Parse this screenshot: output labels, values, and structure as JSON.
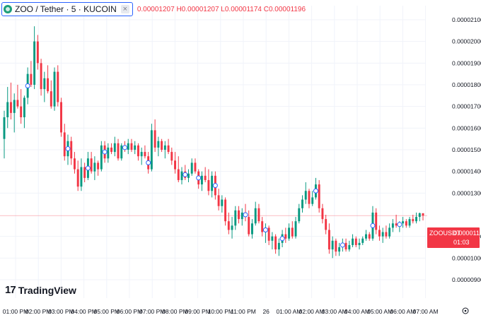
{
  "header": {
    "symbol_text": "ZOO / Tether · 5 · KUCOIN",
    "close_icon": "close-icon",
    "ohlc": {
      "open_key": "O",
      "open": "0.00001207",
      "high_key": "H",
      "high": "0.00001207",
      "low_key": "L",
      "low": "0.00001174",
      "close_key": "C",
      "close": "0.00001196"
    }
  },
  "branding": {
    "logo_text": "TradingView",
    "logo_mark": "17"
  },
  "price_label": {
    "symbol": "ZOOUSDT",
    "price": "0.00001196",
    "countdown": "01:03"
  },
  "axis_settings_icon": "settings-icon",
  "colors": {
    "up": "#089981",
    "down": "#f23645",
    "grid": "#f0f3fa",
    "axis_text": "#131722",
    "marker": "#2962ff"
  },
  "chart_data": {
    "type": "candlestick",
    "title": "ZOO / Tether · 5 · KUCOIN",
    "xlabel": "",
    "ylabel": "",
    "ylim": [
      9e-06,
      2.12e-05
    ],
    "x_ticks": [
      "01:00 PM",
      "02:00 PM",
      "03:00 PM",
      "04:00 PM",
      "05:00 PM",
      "06:00 PM",
      "07:00 PM",
      "08:00 PM",
      "09:00 PM",
      "10:00 PM",
      "11:00 PM",
      "26",
      "01:00 AM",
      "02:00 AM",
      "03:00 AM",
      "04:00 AM",
      "05:00 AM",
      "06:00 AM",
      "07:00 AM"
    ],
    "y_ticks": [
      "0.00002100",
      "0.00002000",
      "0.00001900",
      "0.00001800",
      "0.00001700",
      "0.00001600",
      "0.00001500",
      "0.00001400",
      "0.00001300",
      "0.00001100",
      "0.00001000",
      "0.00000900"
    ],
    "y_tick_values": [
      21.0,
      20.0,
      19.0,
      18.0,
      17.0,
      16.0,
      15.0,
      14.0,
      13.0,
      11.0,
      10.0,
      9.0
    ],
    "last_price_line": 11.96,
    "grid": true,
    "ohlc_1e-6": [
      [
        15.5,
        16.8,
        14.6,
        16.5
      ],
      [
        16.5,
        17.9,
        16.0,
        17.2
      ],
      [
        17.2,
        18.1,
        16.4,
        16.7
      ],
      [
        16.7,
        17.6,
        15.8,
        17.3
      ],
      [
        17.3,
        18.0,
        16.9,
        17.0
      ],
      [
        17.0,
        17.8,
        16.2,
        16.5
      ],
      [
        16.5,
        17.5,
        16.0,
        17.4
      ],
      [
        17.4,
        18.8,
        17.1,
        18.5
      ],
      [
        18.5,
        19.1,
        17.9,
        18.0
      ],
      [
        18.0,
        20.7,
        17.8,
        20.0
      ],
      [
        20.0,
        20.3,
        18.7,
        19.0
      ],
      [
        19.0,
        19.2,
        17.5,
        17.8
      ],
      [
        17.8,
        18.6,
        17.2,
        18.3
      ],
      [
        18.3,
        18.9,
        17.6,
        17.7
      ],
      [
        17.7,
        18.2,
        16.9,
        17.0
      ],
      [
        17.0,
        18.8,
        16.8,
        18.6
      ],
      [
        18.6,
        18.9,
        17.0,
        17.2
      ],
      [
        17.2,
        17.4,
        15.6,
        15.8
      ],
      [
        15.8,
        16.2,
        14.5,
        14.7
      ],
      [
        14.7,
        15.7,
        14.3,
        15.4
      ],
      [
        15.4,
        15.6,
        14.3,
        14.6
      ],
      [
        14.6,
        14.9,
        13.9,
        14.1
      ],
      [
        14.1,
        14.5,
        13.1,
        13.3
      ],
      [
        13.3,
        14.6,
        13.1,
        14.2
      ],
      [
        14.2,
        14.4,
        13.5,
        13.7
      ],
      [
        13.7,
        14.9,
        13.6,
        14.6
      ],
      [
        14.6,
        14.9,
        13.9,
        14.0
      ],
      [
        14.0,
        14.7,
        13.6,
        14.4
      ],
      [
        14.4,
        14.5,
        13.8,
        14.1
      ],
      [
        14.1,
        15.4,
        14.0,
        15.2
      ],
      [
        15.2,
        15.4,
        14.4,
        14.6
      ],
      [
        14.6,
        15.3,
        14.4,
        15.1
      ],
      [
        15.1,
        15.3,
        14.8,
        14.9
      ],
      [
        14.9,
        15.6,
        14.7,
        15.3
      ],
      [
        15.3,
        15.5,
        14.5,
        14.6
      ],
      [
        14.6,
        15.3,
        14.5,
        15.2
      ],
      [
        15.2,
        15.4,
        14.9,
        15.0
      ],
      [
        15.0,
        15.5,
        14.8,
        15.3
      ],
      [
        15.3,
        15.5,
        14.9,
        15.0
      ],
      [
        15.0,
        15.4,
        14.8,
        15.2
      ],
      [
        15.2,
        15.3,
        14.5,
        14.7
      ],
      [
        14.7,
        15.1,
        14.3,
        14.9
      ],
      [
        14.9,
        15.2,
        14.6,
        14.7
      ],
      [
        14.7,
        14.9,
        13.9,
        14.1
      ],
      [
        14.1,
        16.2,
        14.0,
        15.9
      ],
      [
        15.9,
        16.4,
        14.9,
        15.1
      ],
      [
        15.1,
        15.6,
        14.7,
        15.4
      ],
      [
        15.4,
        15.5,
        14.9,
        15.0
      ],
      [
        15.0,
        15.4,
        14.6,
        15.2
      ],
      [
        15.2,
        15.5,
        14.8,
        14.9
      ],
      [
        14.9,
        15.1,
        14.3,
        14.5
      ],
      [
        14.5,
        14.9,
        13.9,
        14.1
      ],
      [
        14.1,
        14.7,
        13.5,
        13.6
      ],
      [
        13.6,
        14.2,
        13.4,
        14.0
      ],
      [
        14.0,
        14.3,
        13.6,
        13.7
      ],
      [
        13.7,
        14.1,
        13.5,
        13.9
      ],
      [
        13.9,
        14.6,
        13.8,
        14.4
      ],
      [
        14.4,
        14.6,
        13.9,
        14.0
      ],
      [
        14.0,
        14.1,
        13.2,
        13.4
      ],
      [
        13.4,
        14.0,
        13.1,
        13.8
      ],
      [
        13.8,
        14.2,
        13.5,
        13.6
      ],
      [
        13.6,
        14.1,
        12.9,
        13.1
      ],
      [
        13.1,
        14.0,
        12.8,
        13.8
      ],
      [
        13.8,
        14.0,
        12.7,
        12.9
      ],
      [
        12.9,
        13.2,
        12.2,
        12.4
      ],
      [
        12.4,
        12.9,
        12.1,
        12.7
      ],
      [
        12.7,
        12.8,
        11.5,
        11.7
      ],
      [
        11.7,
        12.1,
        11.1,
        11.3
      ],
      [
        11.3,
        11.9,
        10.9,
        11.5
      ],
      [
        11.5,
        12.4,
        11.3,
        12.2
      ],
      [
        12.2,
        12.4,
        11.6,
        11.8
      ],
      [
        11.8,
        12.3,
        11.5,
        12.1
      ],
      [
        12.1,
        12.5,
        11.7,
        11.9
      ],
      [
        11.9,
        12.2,
        11.0,
        11.1
      ],
      [
        11.1,
        11.8,
        10.9,
        11.6
      ],
      [
        11.6,
        12.6,
        11.5,
        12.3
      ],
      [
        12.3,
        12.5,
        11.6,
        11.7
      ],
      [
        11.7,
        11.9,
        11.0,
        11.2
      ],
      [
        11.2,
        11.6,
        10.7,
        11.4
      ],
      [
        11.4,
        11.5,
        10.6,
        10.8
      ],
      [
        10.8,
        11.2,
        10.4,
        11.0
      ],
      [
        11.0,
        11.1,
        10.2,
        10.4
      ],
      [
        10.4,
        10.9,
        10.1,
        10.7
      ],
      [
        10.7,
        11.3,
        10.5,
        11.1
      ],
      [
        11.1,
        11.4,
        10.7,
        10.9
      ],
      [
        10.9,
        11.6,
        10.8,
        11.4
      ],
      [
        11.4,
        11.7,
        10.9,
        11.0
      ],
      [
        11.0,
        11.9,
        10.9,
        11.7
      ],
      [
        11.7,
        12.5,
        11.6,
        12.3
      ],
      [
        12.3,
        12.9,
        12.1,
        12.7
      ],
      [
        12.7,
        13.5,
        12.5,
        13.1
      ],
      [
        13.1,
        13.2,
        12.3,
        12.5
      ],
      [
        12.5,
        13.1,
        12.4,
        12.8
      ],
      [
        12.8,
        13.7,
        12.7,
        13.4
      ],
      [
        13.4,
        13.6,
        12.1,
        12.3
      ],
      [
        12.3,
        12.5,
        11.6,
        11.8
      ],
      [
        11.8,
        12.0,
        11.1,
        11.3
      ],
      [
        11.3,
        11.6,
        10.2,
        10.4
      ],
      [
        10.4,
        11.0,
        10.0,
        10.8
      ],
      [
        10.8,
        10.9,
        10.1,
        10.3
      ],
      [
        10.3,
        10.7,
        10.1,
        10.5
      ],
      [
        10.5,
        10.9,
        10.3,
        10.7
      ],
      [
        10.7,
        10.9,
        10.3,
        10.4
      ],
      [
        10.4,
        10.8,
        10.3,
        10.6
      ],
      [
        10.6,
        11.1,
        10.5,
        10.9
      ],
      [
        10.9,
        11.0,
        10.5,
        10.6
      ],
      [
        10.6,
        10.9,
        10.4,
        10.7
      ],
      [
        10.7,
        11.0,
        10.6,
        10.9
      ],
      [
        10.9,
        11.3,
        10.8,
        11.1
      ],
      [
        11.1,
        11.2,
        10.8,
        10.9
      ],
      [
        10.9,
        12.4,
        10.8,
        12.1
      ],
      [
        12.1,
        12.3,
        11.1,
        11.3
      ],
      [
        11.3,
        11.5,
        10.8,
        11.0
      ],
      [
        11.0,
        11.4,
        10.7,
        11.2
      ],
      [
        11.2,
        11.5,
        10.9,
        11.0
      ],
      [
        11.0,
        11.6,
        10.9,
        11.4
      ],
      [
        11.4,
        11.8,
        11.2,
        11.6
      ],
      [
        11.6,
        12.0,
        11.4,
        11.5
      ],
      [
        11.5,
        11.7,
        11.2,
        11.6
      ],
      [
        11.6,
        11.9,
        11.4,
        11.7
      ],
      [
        11.7,
        11.8,
        11.4,
        11.5
      ],
      [
        11.5,
        11.9,
        11.4,
        11.8
      ],
      [
        11.8,
        12.0,
        11.6,
        11.7
      ],
      [
        11.7,
        12.1,
        11.6,
        11.9
      ],
      [
        11.9,
        12.1,
        11.7,
        12.07
      ],
      [
        12.07,
        12.07,
        11.74,
        11.96
      ]
    ],
    "markers_at_index": [
      7,
      19,
      25,
      30,
      36,
      43,
      54,
      58,
      63,
      72,
      78,
      83,
      93,
      101,
      110,
      118
    ]
  }
}
